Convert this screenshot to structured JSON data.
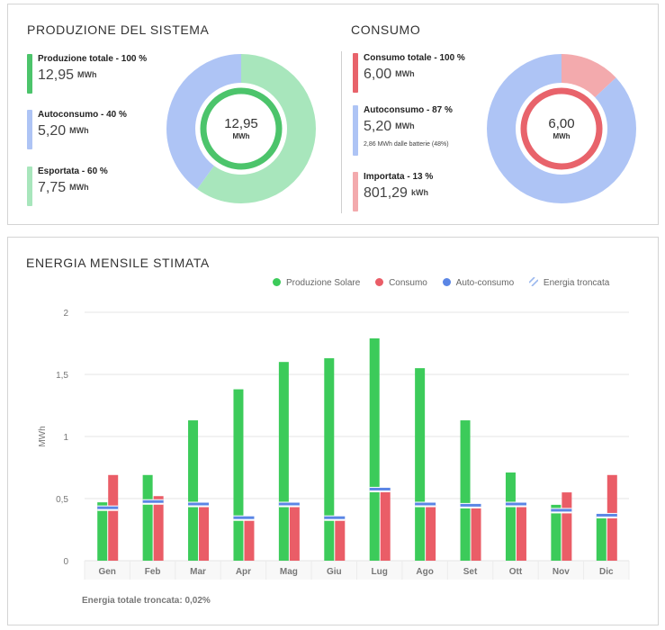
{
  "production": {
    "title": "PRODUZIONE DEL SISTEMA",
    "items": [
      {
        "label": "Produzione totale - 100 %",
        "value": "12,95",
        "unit": "MWh",
        "color": "#4cc46b"
      },
      {
        "label": "Autoconsumo - 40 %",
        "value": "5,20",
        "unit": "MWh",
        "color": "#aec4f5"
      },
      {
        "label": "Esportata - 60 %",
        "value": "7,75",
        "unit": "MWh",
        "color": "#a8e6bc"
      }
    ],
    "donut": {
      "value": "12,95",
      "unit": "MWh",
      "ring_color": "#4cc46b",
      "slices": [
        {
          "fraction": 0.6,
          "color": "#a8e6bc"
        },
        {
          "fraction": 0.4,
          "color": "#aec4f5"
        }
      ]
    }
  },
  "consumption": {
    "title": "CONSUMO",
    "items": [
      {
        "label": "Consumo totale - 100 %",
        "value": "6,00",
        "unit": "MWh",
        "color": "#e8636b"
      },
      {
        "label": "Autoconsumo - 87 %",
        "value": "5,20",
        "unit": "MWh",
        "note": "2,86 MWh dalle batterie (48%)",
        "color": "#aec4f5"
      },
      {
        "label": "Importata - 13 %",
        "value": "801,29",
        "unit": "kWh",
        "color": "#f3aaad"
      }
    ],
    "donut": {
      "value": "6,00",
      "unit": "MWh",
      "ring_color": "#e8636b",
      "slices": [
        {
          "fraction": 0.13,
          "color": "#f3aaad"
        },
        {
          "fraction": 0.87,
          "color": "#aec4f5"
        }
      ]
    }
  },
  "chart": {
    "title": "ENERGIA MENSILE STIMATA",
    "legend": [
      {
        "label": "Produzione Solare",
        "color": "#3ccb5a"
      },
      {
        "label": "Consumo",
        "color": "#ea5d67"
      },
      {
        "label": "Auto-consumo",
        "color": "#5b86e5"
      },
      {
        "label": "Energia troncata",
        "color": "#9bb8ee",
        "hatched": true
      }
    ],
    "footer": "Energia totale troncata: 0,02%"
  },
  "chart_data": {
    "type": "bar",
    "ylabel": "MWh",
    "ylim": [
      0,
      2
    ],
    "yticks": [
      0,
      0.5,
      1,
      1.5,
      2
    ],
    "ytick_labels": [
      "0",
      "0,5",
      "1",
      "1,5",
      "2"
    ],
    "categories": [
      "Gen",
      "Feb",
      "Mar",
      "Apr",
      "Mag",
      "Giu",
      "Lug",
      "Ago",
      "Set",
      "Ott",
      "Nov",
      "Dic"
    ],
    "series": [
      {
        "name": "Produzione Solare",
        "color": "#3ccb5a",
        "values": [
          0.47,
          0.69,
          1.13,
          1.38,
          1.6,
          1.63,
          1.79,
          1.55,
          1.13,
          0.71,
          0.45,
          0.36
        ]
      },
      {
        "name": "Consumo",
        "color": "#ea5d67",
        "values": [
          0.69,
          0.52,
          0.44,
          0.33,
          0.45,
          0.33,
          0.57,
          0.45,
          0.44,
          0.45,
          0.55,
          0.69
        ]
      },
      {
        "name": "Auto-consumo",
        "color": "#5b86e5",
        "values": [
          0.43,
          0.48,
          0.46,
          0.35,
          0.46,
          0.35,
          0.58,
          0.46,
          0.45,
          0.46,
          0.41,
          0.37
        ]
      }
    ],
    "grid": true,
    "legend_position": "top-right"
  }
}
